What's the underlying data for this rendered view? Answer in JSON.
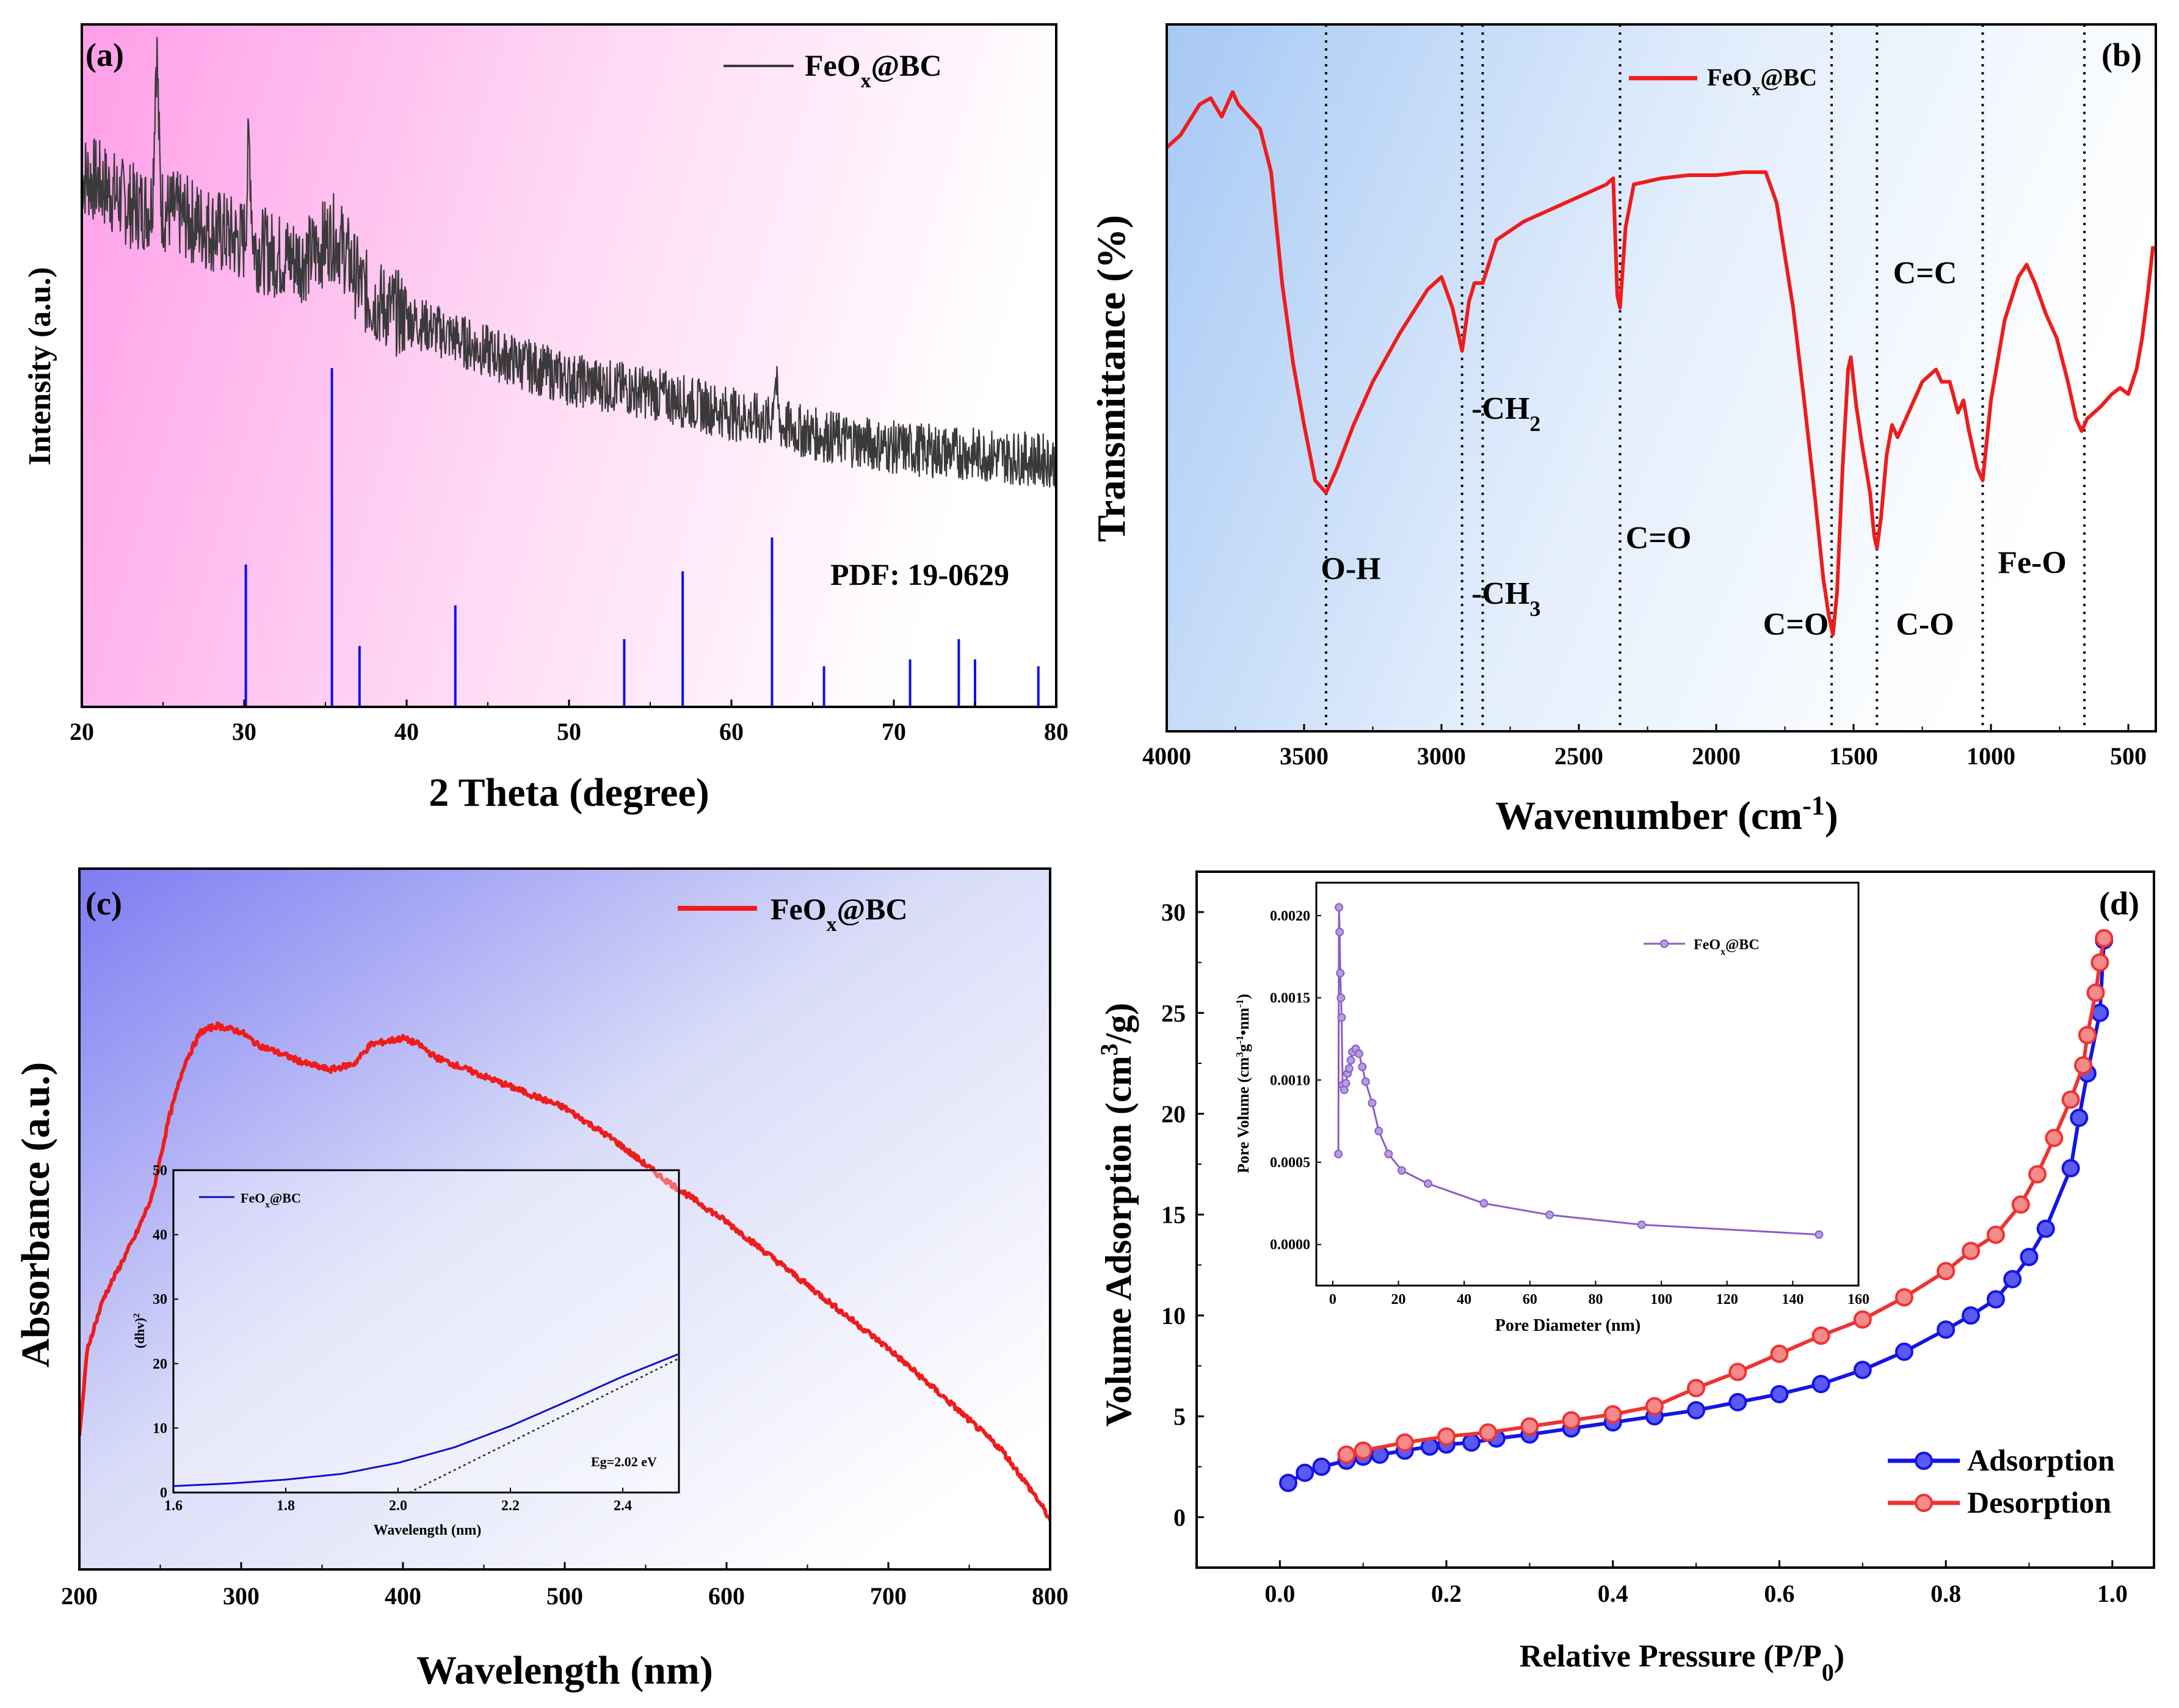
{
  "chart_data": [
    {
      "id": "a",
      "panel_label": "(a)",
      "type": "line",
      "title": "",
      "xlabel": "2 Theta (degree)",
      "ylabel": "Intensity (a.u.)",
      "xlim": [
        20,
        80
      ],
      "xticks": [
        "20",
        "30",
        "40",
        "50",
        "60",
        "70",
        "80"
      ],
      "legend": "FeOx@BC",
      "legend_position": "top-right",
      "annotation": "PDF: 19-0629",
      "series_color": "#3a3a3a",
      "reference_color": "#1010ee",
      "peaks": [
        {
          "x": 24.6,
          "y": 96
        },
        {
          "x": 30.3,
          "y": 82
        },
        {
          "x": 35.6,
          "y": 75
        },
        {
          "x": 23.0,
          "y": 72
        },
        {
          "x": 62.7,
          "y": 48
        },
        {
          "x": 33.5,
          "y": 66
        }
      ],
      "baseline": [
        [
          20,
          78
        ],
        [
          25,
          73
        ],
        [
          30,
          68
        ],
        [
          35,
          63
        ],
        [
          40,
          57
        ],
        [
          45,
          52
        ],
        [
          50,
          48
        ],
        [
          55,
          46
        ],
        [
          60,
          43
        ],
        [
          65,
          40
        ],
        [
          70,
          38
        ],
        [
          75,
          37
        ],
        [
          80,
          36
        ]
      ],
      "reference_lines": [
        {
          "x": 30.1,
          "h": 0.42
        },
        {
          "x": 35.4,
          "h": 1.0
        },
        {
          "x": 37.1,
          "h": 0.18
        },
        {
          "x": 43.0,
          "h": 0.3
        },
        {
          "x": 53.4,
          "h": 0.2
        },
        {
          "x": 57.0,
          "h": 0.4
        },
        {
          "x": 62.5,
          "h": 0.5
        },
        {
          "x": 65.7,
          "h": 0.12
        },
        {
          "x": 71.0,
          "h": 0.14
        },
        {
          "x": 74.0,
          "h": 0.2
        },
        {
          "x": 75.0,
          "h": 0.14
        },
        {
          "x": 78.9,
          "h": 0.12
        }
      ]
    },
    {
      "id": "b",
      "panel_label": "(b)",
      "type": "line",
      "xlabel": "Wavenumber (cm",
      "xlabel_sup": "-1",
      "xlabel_end": ")",
      "ylabel": "Transmittance (%)",
      "xlim": [
        4000,
        400
      ],
      "xticks": [
        "4000",
        "3500",
        "3000",
        "2500",
        "2000",
        "1500",
        "1000",
        "500"
      ],
      "legend": "FeOx@BC",
      "legend_position": "top",
      "series_color": "#ee1c1c",
      "points": [
        [
          4000,
          84
        ],
        [
          3950,
          86
        ],
        [
          3880,
          91
        ],
        [
          3840,
          92
        ],
        [
          3800,
          89
        ],
        [
          3760,
          93
        ],
        [
          3740,
          91
        ],
        [
          3700,
          89
        ],
        [
          3660,
          87
        ],
        [
          3620,
          80
        ],
        [
          3580,
          62
        ],
        [
          3540,
          49
        ],
        [
          3500,
          39
        ],
        [
          3460,
          30
        ],
        [
          3420,
          28
        ],
        [
          3380,
          32
        ],
        [
          3320,
          39
        ],
        [
          3250,
          46
        ],
        [
          3150,
          54
        ],
        [
          3050,
          61
        ],
        [
          3000,
          63
        ],
        [
          2960,
          58
        ],
        [
          2925,
          51
        ],
        [
          2900,
          59
        ],
        [
          2880,
          62
        ],
        [
          2850,
          62
        ],
        [
          2800,
          69
        ],
        [
          2700,
          72
        ],
        [
          2600,
          74
        ],
        [
          2500,
          76
        ],
        [
          2400,
          78
        ],
        [
          2375,
          79
        ],
        [
          2360,
          60
        ],
        [
          2350,
          58
        ],
        [
          2330,
          71
        ],
        [
          2300,
          78
        ],
        [
          2200,
          79
        ],
        [
          2100,
          79.5
        ],
        [
          2000,
          79.5
        ],
        [
          1900,
          80
        ],
        [
          1820,
          80
        ],
        [
          1780,
          75
        ],
        [
          1720,
          58
        ],
        [
          1680,
          43
        ],
        [
          1640,
          27
        ],
        [
          1610,
          14
        ],
        [
          1590,
          8
        ],
        [
          1575,
          5
        ],
        [
          1560,
          12
        ],
        [
          1540,
          32
        ],
        [
          1520,
          48
        ],
        [
          1510,
          50
        ],
        [
          1490,
          42
        ],
        [
          1470,
          36
        ],
        [
          1440,
          28
        ],
        [
          1425,
          21
        ],
        [
          1415,
          19
        ],
        [
          1400,
          24
        ],
        [
          1380,
          34
        ],
        [
          1360,
          39
        ],
        [
          1340,
          37
        ],
        [
          1300,
          41
        ],
        [
          1250,
          46
        ],
        [
          1200,
          48
        ],
        [
          1180,
          46
        ],
        [
          1150,
          46
        ],
        [
          1120,
          41
        ],
        [
          1100,
          43
        ],
        [
          1080,
          38
        ],
        [
          1050,
          32
        ],
        [
          1030,
          30
        ],
        [
          1000,
          43
        ],
        [
          950,
          56
        ],
        [
          900,
          63
        ],
        [
          870,
          65
        ],
        [
          840,
          62
        ],
        [
          800,
          57
        ],
        [
          760,
          53
        ],
        [
          720,
          46
        ],
        [
          690,
          40
        ],
        [
          670,
          38
        ],
        [
          650,
          40
        ],
        [
          600,
          42
        ],
        [
          560,
          44
        ],
        [
          530,
          45
        ],
        [
          500,
          44
        ],
        [
          470,
          48
        ],
        [
          450,
          53
        ],
        [
          430,
          60
        ],
        [
          410,
          68
        ]
      ],
      "ylim": [
        0,
        100
      ],
      "marker_lines": [
        3420,
        2925,
        2850,
        2350,
        1580,
        1415,
        1030,
        660,
        400
      ],
      "annotations": [
        {
          "text": "O-H",
          "x": 3330,
          "y": 14
        },
        {
          "text": "-CH",
          "sub": "2",
          "x": 2765,
          "y": 40
        },
        {
          "text": "-CH",
          "sub": "3",
          "x": 2765,
          "y": 10
        },
        {
          "text": "C=O",
          "x": 2210,
          "y": 19
        },
        {
          "text": "C=O",
          "x": 1710,
          "y": 5
        },
        {
          "text": "C=C",
          "x": 1240,
          "y": 62
        },
        {
          "text": "C-O",
          "x": 1240,
          "y": 5
        },
        {
          "text": "Fe-O",
          "x": 850,
          "y": 15
        }
      ]
    },
    {
      "id": "c",
      "panel_label": "(c)",
      "type": "line",
      "xlabel": "Wavelength (nm)",
      "ylabel": "Absorbance (a.u.)",
      "xlim": [
        200,
        800
      ],
      "xticks": [
        "200",
        "300",
        "400",
        "500",
        "600",
        "700",
        "800"
      ],
      "legend": "FeOx@BC",
      "legend_position": "top-right",
      "series_color": "#ee1c1c",
      "ylim": [
        0,
        100
      ],
      "points": [
        [
          200,
          16
        ],
        [
          205,
          30
        ],
        [
          215,
          38
        ],
        [
          225,
          43
        ],
        [
          235,
          48
        ],
        [
          245,
          54
        ],
        [
          255,
          66
        ],
        [
          265,
          75
        ],
        [
          275,
          80
        ],
        [
          285,
          81
        ],
        [
          300,
          80
        ],
        [
          310,
          78
        ],
        [
          320,
          77
        ],
        [
          340,
          75
        ],
        [
          355,
          74
        ],
        [
          370,
          75
        ],
        [
          380,
          78
        ],
        [
          400,
          79
        ],
        [
          410,
          78
        ],
        [
          420,
          76
        ],
        [
          450,
          73
        ],
        [
          480,
          70
        ],
        [
          500,
          68
        ],
        [
          530,
          63
        ],
        [
          560,
          57
        ],
        [
          600,
          50
        ],
        [
          650,
          40
        ],
        [
          700,
          30
        ],
        [
          740,
          21
        ],
        [
          770,
          14
        ],
        [
          790,
          7
        ],
        [
          800,
          3
        ]
      ],
      "inset": {
        "legend": "FeOx@BC",
        "xlabel": "Wavelength (nm)",
        "ylabel": "(dhv)",
        "ylabel_sup": "2",
        "xlim": [
          1.6,
          2.5
        ],
        "ylim": [
          0,
          50
        ],
        "xticks": [
          "1.6",
          "1.8",
          "2.0",
          "2.2",
          "2.4"
        ],
        "yticks": [
          "0",
          "10",
          "20",
          "30",
          "40",
          "50"
        ],
        "annotation": "Eg=2.02 eV",
        "series_color": "#1010cc",
        "curve": [
          [
            1.6,
            1.0
          ],
          [
            1.7,
            1.4
          ],
          [
            1.8,
            2.0
          ],
          [
            1.9,
            2.9
          ],
          [
            2.0,
            4.6
          ],
          [
            2.1,
            7.0
          ],
          [
            2.2,
            10.3
          ],
          [
            2.3,
            14.1
          ],
          [
            2.4,
            18.0
          ],
          [
            2.5,
            21.5
          ]
        ],
        "tangent": [
          [
            2.02,
            0
          ],
          [
            2.5,
            20.8
          ]
        ]
      }
    },
    {
      "id": "d",
      "panel_label": "(d)",
      "type": "line",
      "xlabel": "Relative Pressure (P/P",
      "xlabel_sub": "0",
      "xlabel_end": ")",
      "ylabel": "Volume Adsorption (cm",
      "ylabel_sup": "3",
      "ylabel_end": "/g)",
      "xlim": [
        -0.1,
        1.05
      ],
      "ylim": [
        -2.5,
        32
      ],
      "xticks": [
        "0.0",
        "0.2",
        "0.4",
        "0.6",
        "0.8",
        "1.0"
      ],
      "yticks": [
        "0",
        "5",
        "10",
        "15",
        "20",
        "25",
        "30"
      ],
      "legend_position": "bottom-right",
      "series": [
        {
          "name": "Adsorption",
          "color": "#1414e6",
          "x": [
            0.01,
            0.03,
            0.05,
            0.08,
            0.1,
            0.12,
            0.15,
            0.18,
            0.2,
            0.23,
            0.26,
            0.3,
            0.35,
            0.4,
            0.45,
            0.5,
            0.55,
            0.6,
            0.65,
            0.7,
            0.75,
            0.8,
            0.83,
            0.86,
            0.88,
            0.9,
            0.92,
            0.95,
            0.96,
            0.97,
            0.985,
            0.99
          ],
          "y": [
            1.7,
            2.2,
            2.5,
            2.8,
            3.0,
            3.1,
            3.3,
            3.5,
            3.6,
            3.7,
            3.9,
            4.1,
            4.4,
            4.7,
            5.0,
            5.3,
            5.7,
            6.1,
            6.6,
            7.3,
            8.2,
            9.3,
            10.0,
            10.8,
            11.8,
            12.9,
            14.3,
            17.3,
            19.8,
            22.0,
            25.0,
            28.6
          ]
        },
        {
          "name": "Desorption",
          "color": "#ee3333",
          "x": [
            0.99,
            0.985,
            0.98,
            0.97,
            0.965,
            0.95,
            0.93,
            0.91,
            0.89,
            0.86,
            0.83,
            0.8,
            0.75,
            0.7,
            0.65,
            0.6,
            0.55,
            0.5,
            0.45,
            0.4,
            0.35,
            0.3,
            0.25,
            0.2,
            0.15,
            0.1,
            0.08
          ],
          "y": [
            28.7,
            27.5,
            26.0,
            23.9,
            22.4,
            20.7,
            18.8,
            17.0,
            15.5,
            14.0,
            13.2,
            12.2,
            10.9,
            9.8,
            9.0,
            8.1,
            7.2,
            6.4,
            5.5,
            5.1,
            4.8,
            4.5,
            4.2,
            4.0,
            3.7,
            3.3,
            3.1
          ]
        }
      ],
      "inset": {
        "legend": "FeOx@BC",
        "xlabel": "Pore Diameter (nm)",
        "ylabel": "Pore Volume (cm",
        "ylabel_sup1": "3",
        "ylabel_mid": "g",
        "ylabel_sup2": "-1",
        "ylabel_mid2": "nm",
        "ylabel_sup3": "-1",
        "ylabel_end": ")",
        "xlim": [
          -5,
          160
        ],
        "ylim": [
          -0.00025,
          0.0022
        ],
        "xticks": [
          "0",
          "20",
          "40",
          "60",
          "80",
          "100",
          "120",
          "140",
          "160"
        ],
        "yticks": [
          "0.0000",
          "0.0005",
          "0.0010",
          "0.0015",
          "0.0020"
        ],
        "series_color": "#8a5cc6",
        "x": [
          1.7,
          1.9,
          2.1,
          2.3,
          2.5,
          2.7,
          3.0,
          3.5,
          4.0,
          4.5,
          5.0,
          5.5,
          6.0,
          7.0,
          8.0,
          9.0,
          10.0,
          12.0,
          14.0,
          17.0,
          21.0,
          29.0,
          46.0,
          66.0,
          94.0,
          148.0
        ],
        "y": [
          0.00055,
          0.00205,
          0.0019,
          0.00165,
          0.0015,
          0.00138,
          0.00097,
          0.00094,
          0.00098,
          0.00104,
          0.00107,
          0.00112,
          0.00117,
          0.00119,
          0.00116,
          0.00108,
          0.00099,
          0.00086,
          0.00069,
          0.00055,
          0.00045,
          0.00037,
          0.00025,
          0.00018,
          0.00012,
          6e-05
        ]
      }
    }
  ]
}
